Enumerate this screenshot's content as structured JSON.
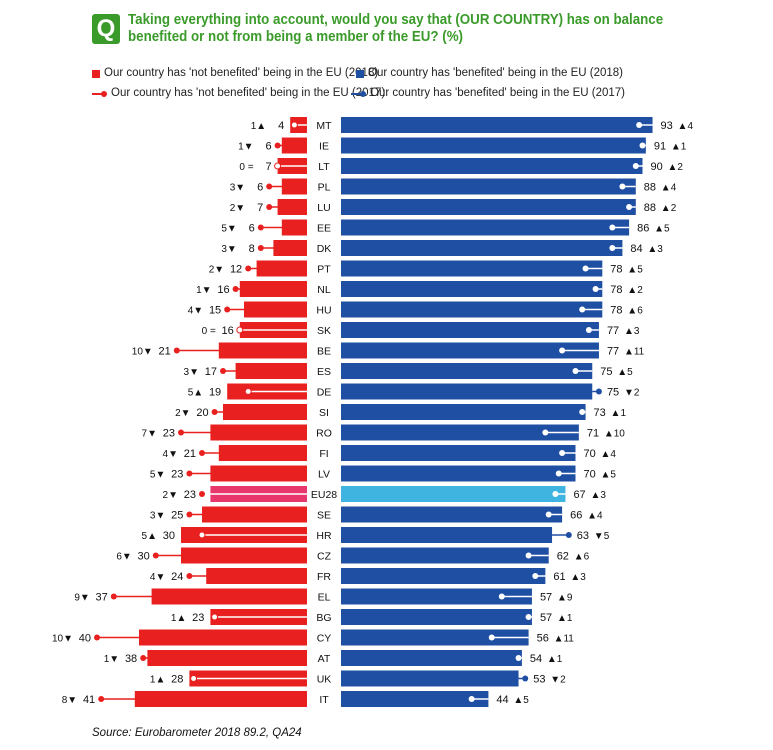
{
  "header": {
    "q_badge": "Q",
    "title": "Taking everything into account, would you say that (OUR COUNTRY) has on balance benefited or not from being a member of the EU? (%)"
  },
  "legend": {
    "not_2018": "Our country has 'not benefited' being in the EU (2018)",
    "ben_2018": "Our country has 'benefited' being in the EU (2018)",
    "not_2017": "Our country has 'not benefited' being in the EU (2017)",
    "ben_2017": "Our country has 'benefited' being in the EU (2017)"
  },
  "colors": {
    "not_benefited": "#e8201f",
    "benefited": "#1f4fa3",
    "eu_not": "#e8386b",
    "eu_ben": "#3fb4e0",
    "title_green": "#3a9b2a"
  },
  "source": "Source: Eurobarometer 2018 89.2, QA24",
  "chart_data": {
    "type": "bar",
    "categories": [
      "MT",
      "IE",
      "LT",
      "PL",
      "LU",
      "EE",
      "DK",
      "PT",
      "NL",
      "HU",
      "SK",
      "BE",
      "ES",
      "DE",
      "SI",
      "RO",
      "FI",
      "LV",
      "EU28",
      "SE",
      "HR",
      "CZ",
      "FR",
      "EL",
      "BG",
      "CY",
      "AT",
      "UK",
      "IT"
    ],
    "series": [
      {
        "name": "Our country has 'not benefited' being in the EU (2018)",
        "values": [
          4,
          6,
          7,
          6,
          7,
          6,
          8,
          12,
          16,
          15,
          16,
          21,
          17,
          19,
          20,
          23,
          21,
          23,
          23,
          25,
          30,
          30,
          24,
          37,
          23,
          40,
          38,
          28,
          41
        ],
        "change": [
          "1▲",
          "1▼",
          "0 =",
          "3▼",
          "2▼",
          "5▼",
          "3▼",
          "2▼",
          "1▼",
          "4▼",
          "0 =",
          "10▼",
          "3▼",
          "5▲",
          "2▼",
          "7▼",
          "4▼",
          "5▼",
          "2▼",
          "3▼",
          "5▲",
          "6▼",
          "4▼",
          "9▼",
          "1▲",
          "10▼",
          "1▼",
          "1▲",
          "8▼"
        ]
      },
      {
        "name": "Our country has 'not benefited' being in the EU (2017)",
        "values": [
          3,
          7,
          7,
          9,
          9,
          11,
          11,
          14,
          17,
          19,
          16,
          31,
          20,
          14,
          22,
          30,
          25,
          28,
          25,
          28,
          25,
          36,
          28,
          46,
          22,
          50,
          39,
          27,
          49
        ]
      },
      {
        "name": "Our country has 'benefited' being in the EU (2018)",
        "values": [
          93,
          91,
          90,
          88,
          88,
          86,
          84,
          78,
          78,
          78,
          77,
          77,
          75,
          75,
          73,
          71,
          70,
          70,
          67,
          66,
          63,
          62,
          61,
          57,
          57,
          56,
          54,
          53,
          44
        ],
        "change": [
          "▲4",
          "▲1",
          "▲2",
          "▲4",
          "▲2",
          "▲5",
          "▲3",
          "▲5",
          "▲2",
          "▲6",
          "▲3",
          "▲11",
          "▲5",
          "▼2",
          "▲1",
          "▲10",
          "▲4",
          "▲5",
          "▲3",
          "▲4",
          "▼5",
          "▲6",
          "▲3",
          "▲9",
          "▲1",
          "▲11",
          "▲1",
          "▼2",
          "▲5"
        ]
      },
      {
        "name": "Our country has 'benefited' being in the EU (2017)",
        "values": [
          89,
          90,
          88,
          84,
          86,
          81,
          81,
          73,
          76,
          72,
          74,
          66,
          70,
          77,
          72,
          61,
          66,
          65,
          64,
          62,
          68,
          56,
          58,
          48,
          56,
          45,
          53,
          55,
          39
        ]
      }
    ],
    "highlight_category": "EU28"
  }
}
